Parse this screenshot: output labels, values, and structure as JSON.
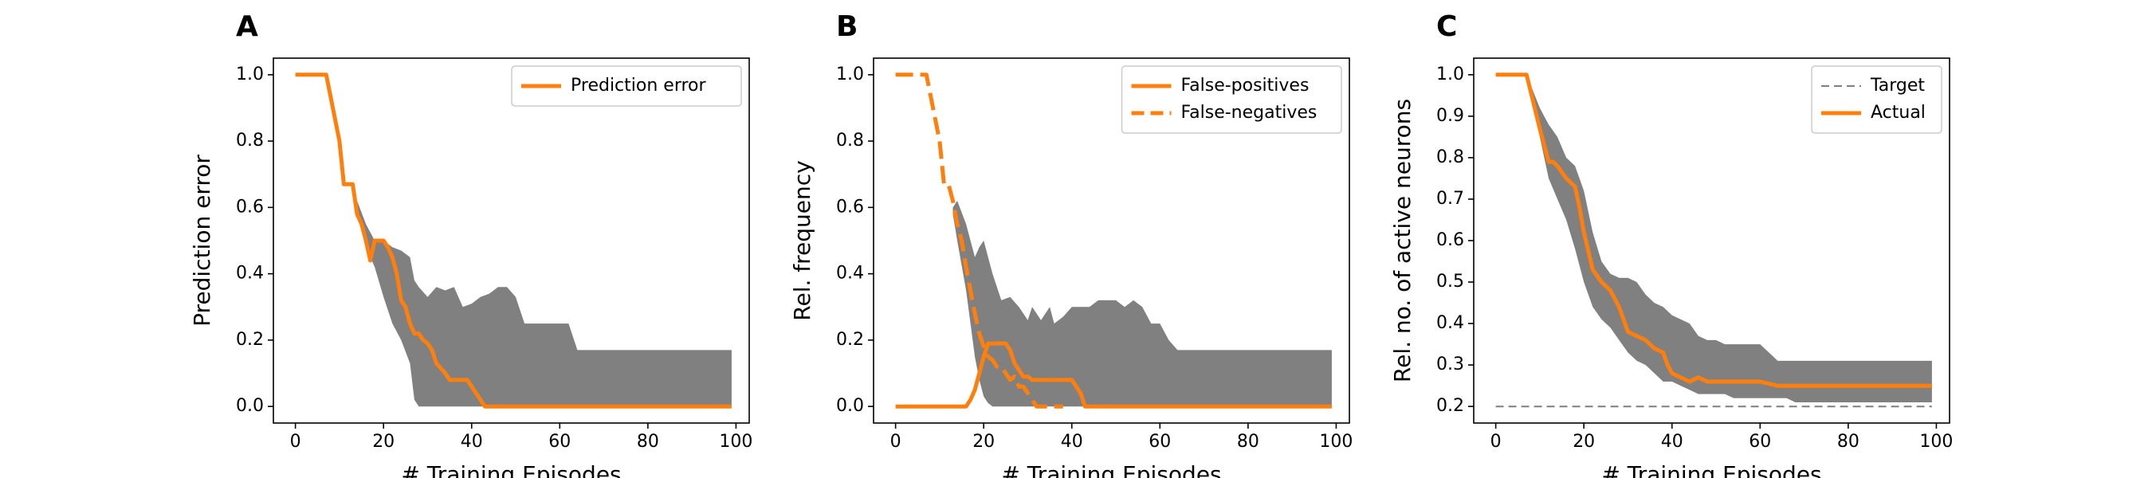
{
  "chart_data": [
    {
      "panel_label": "A",
      "type": "line",
      "xlabel": "# Training Episodes",
      "ylabel": "Prediction error",
      "xlim": [
        -5,
        103
      ],
      "ylim": [
        -0.05,
        1.05
      ],
      "xticks": [
        0,
        20,
        40,
        60,
        80,
        100
      ],
      "yticks": [
        0.0,
        0.2,
        0.4,
        0.6,
        0.8,
        1.0
      ],
      "ytick_format": "1",
      "legend_position": "top-right",
      "band": {
        "color": "#808080",
        "x": [
          14,
          16,
          18,
          20,
          22,
          24,
          26,
          27,
          28,
          30,
          32,
          34,
          36,
          38,
          40,
          42,
          44,
          46,
          48,
          50,
          52,
          54,
          56,
          58,
          60,
          62,
          64,
          66,
          70,
          80,
          90,
          99
        ],
        "upper": [
          0.62,
          0.55,
          0.5,
          0.5,
          0.48,
          0.47,
          0.45,
          0.38,
          0.36,
          0.33,
          0.36,
          0.35,
          0.36,
          0.3,
          0.31,
          0.33,
          0.34,
          0.36,
          0.36,
          0.33,
          0.25,
          0.25,
          0.25,
          0.25,
          0.25,
          0.25,
          0.17,
          0.17,
          0.17,
          0.17,
          0.17,
          0.17
        ],
        "lower": [
          0.6,
          0.48,
          0.42,
          0.33,
          0.25,
          0.2,
          0.13,
          0.02,
          0.0,
          0.0,
          0.0,
          0.0,
          0.0,
          0.0,
          0.0,
          0.0,
          0.0,
          0.0,
          0.0,
          0.0,
          0.0,
          0.0,
          0.0,
          0.0,
          0.0,
          0.0,
          0.0,
          0.0,
          0.0,
          0.0,
          0.0,
          0.0
        ]
      },
      "series": [
        {
          "name": "Prediction error",
          "style": "solid",
          "color": "#ff7f0e",
          "x": [
            0,
            7,
            10,
            11,
            13,
            14,
            15,
            16,
            17,
            18,
            19,
            20,
            21,
            22,
            23,
            24,
            25,
            26,
            27,
            28,
            29,
            30,
            31,
            32,
            34,
            35,
            38,
            39,
            41,
            43,
            50,
            60,
            70,
            80,
            90,
            99
          ],
          "y": [
            1.0,
            1.0,
            0.8,
            0.67,
            0.67,
            0.58,
            0.55,
            0.5,
            0.44,
            0.5,
            0.5,
            0.5,
            0.48,
            0.45,
            0.4,
            0.32,
            0.3,
            0.25,
            0.22,
            0.22,
            0.2,
            0.19,
            0.17,
            0.13,
            0.1,
            0.08,
            0.08,
            0.08,
            0.04,
            0.0,
            0.0,
            0.0,
            0.0,
            0.0,
            0.0,
            0.0
          ]
        }
      ]
    },
    {
      "panel_label": "B",
      "type": "line",
      "xlabel": "# Training Episodes",
      "ylabel": "Rel. frequency",
      "xlim": [
        -5,
        103
      ],
      "ylim": [
        -0.05,
        1.05
      ],
      "xticks": [
        0,
        20,
        40,
        60,
        80,
        100
      ],
      "yticks": [
        0.0,
        0.2,
        0.4,
        0.6,
        0.8,
        1.0
      ],
      "ytick_format": "1",
      "legend_position": "top-right",
      "band": {
        "color": "#808080",
        "x": [
          13,
          14,
          16,
          17,
          18,
          19,
          20,
          21,
          22,
          24,
          26,
          28,
          30,
          31,
          33,
          35,
          36,
          38,
          40,
          42,
          44,
          46,
          48,
          50,
          52,
          54,
          56,
          58,
          60,
          62,
          64,
          66,
          70,
          80,
          90,
          99
        ],
        "upper": [
          0.6,
          0.62,
          0.55,
          0.5,
          0.45,
          0.48,
          0.5,
          0.45,
          0.4,
          0.32,
          0.33,
          0.3,
          0.26,
          0.3,
          0.26,
          0.3,
          0.25,
          0.27,
          0.3,
          0.3,
          0.3,
          0.32,
          0.32,
          0.32,
          0.3,
          0.32,
          0.3,
          0.25,
          0.25,
          0.2,
          0.17,
          0.17,
          0.17,
          0.17,
          0.17,
          0.17
        ],
        "lower": [
          0.58,
          0.5,
          0.35,
          0.25,
          0.15,
          0.08,
          0.03,
          0.01,
          0.0,
          0.0,
          0.0,
          0.0,
          0.0,
          0.0,
          0.0,
          0.0,
          0.0,
          0.0,
          0.0,
          0.0,
          0.0,
          0.0,
          0.0,
          0.0,
          0.0,
          0.0,
          0.0,
          0.0,
          0.0,
          0.0,
          0.0,
          0.0,
          0.0,
          0.0,
          0.0,
          0.0
        ]
      },
      "series": [
        {
          "name": "False-positives",
          "style": "solid",
          "color": "#ff7f0e",
          "x": [
            0,
            16,
            17,
            18,
            19,
            20,
            21,
            22,
            25,
            26,
            27,
            28,
            29,
            30,
            31,
            32,
            40,
            42,
            43,
            50,
            60,
            70,
            80,
            90,
            99
          ],
          "y": [
            0.0,
            0.0,
            0.02,
            0.05,
            0.1,
            0.15,
            0.19,
            0.19,
            0.19,
            0.17,
            0.13,
            0.11,
            0.09,
            0.09,
            0.08,
            0.08,
            0.08,
            0.04,
            0.0,
            0.0,
            0.0,
            0.0,
            0.0,
            0.0,
            0.0
          ]
        },
        {
          "name": "False-negatives",
          "style": "dashed",
          "color": "#ff7f0e",
          "x": [
            0,
            7,
            10,
            11,
            12,
            13,
            14,
            15,
            16,
            17,
            18,
            19,
            20,
            21,
            22,
            23,
            24,
            25,
            26,
            27,
            28,
            29,
            30,
            31,
            32,
            33,
            34,
            38
          ],
          "y": [
            1.0,
            1.0,
            0.8,
            0.67,
            0.67,
            0.62,
            0.55,
            0.5,
            0.42,
            0.35,
            0.28,
            0.22,
            0.18,
            0.15,
            0.14,
            0.12,
            0.12,
            0.1,
            0.08,
            0.09,
            0.06,
            0.06,
            0.04,
            0.02,
            0.0,
            0.0,
            0.0,
            0.0
          ]
        }
      ]
    },
    {
      "panel_label": "C",
      "type": "line",
      "xlabel": "# Training Episodes",
      "ylabel": "Rel. no. of active neurons",
      "xlim": [
        -5,
        103
      ],
      "ylim": [
        0.16,
        1.04
      ],
      "xticks": [
        0,
        20,
        40,
        60,
        80,
        100
      ],
      "yticks": [
        0.2,
        0.3,
        0.4,
        0.5,
        0.6,
        0.7,
        0.8,
        0.9,
        1.0
      ],
      "ytick_format": "1",
      "legend_position": "top-right",
      "band": {
        "color": "#808080",
        "x": [
          7,
          10,
          12,
          14,
          16,
          18,
          20,
          22,
          24,
          26,
          28,
          30,
          32,
          34,
          36,
          38,
          40,
          42,
          44,
          46,
          48,
          50,
          52,
          54,
          56,
          58,
          60,
          62,
          64,
          66,
          68,
          70,
          80,
          90,
          99
        ],
        "upper": [
          1.0,
          0.92,
          0.88,
          0.85,
          0.8,
          0.78,
          0.72,
          0.62,
          0.55,
          0.52,
          0.51,
          0.51,
          0.5,
          0.47,
          0.45,
          0.44,
          0.42,
          0.41,
          0.4,
          0.37,
          0.36,
          0.36,
          0.35,
          0.35,
          0.35,
          0.35,
          0.35,
          0.33,
          0.31,
          0.31,
          0.31,
          0.31,
          0.31,
          0.31,
          0.31
        ],
        "lower": [
          1.0,
          0.85,
          0.75,
          0.7,
          0.65,
          0.58,
          0.5,
          0.44,
          0.41,
          0.39,
          0.36,
          0.33,
          0.31,
          0.3,
          0.28,
          0.26,
          0.26,
          0.25,
          0.24,
          0.23,
          0.23,
          0.23,
          0.23,
          0.22,
          0.22,
          0.22,
          0.22,
          0.22,
          0.22,
          0.22,
          0.21,
          0.21,
          0.21,
          0.21,
          0.21
        ]
      },
      "series": [
        {
          "name": "Target",
          "style": "dashed",
          "color": "#7f7f7f",
          "x": [
            0,
            99
          ],
          "y": [
            0.2,
            0.2
          ]
        },
        {
          "name": "Actual",
          "style": "solid",
          "color": "#ff7f0e",
          "x": [
            0,
            7,
            10,
            12,
            13,
            14,
            16,
            18,
            19,
            20,
            22,
            24,
            26,
            28,
            30,
            32,
            34,
            36,
            38,
            39,
            40,
            42,
            44,
            46,
            48,
            50,
            52,
            56,
            60,
            64,
            70,
            80,
            90,
            99
          ],
          "y": [
            1.0,
            1.0,
            0.87,
            0.79,
            0.79,
            0.78,
            0.75,
            0.73,
            0.68,
            0.62,
            0.53,
            0.5,
            0.48,
            0.44,
            0.38,
            0.37,
            0.36,
            0.34,
            0.33,
            0.3,
            0.28,
            0.27,
            0.26,
            0.27,
            0.26,
            0.26,
            0.26,
            0.26,
            0.26,
            0.25,
            0.25,
            0.25,
            0.25,
            0.25
          ]
        }
      ]
    }
  ]
}
